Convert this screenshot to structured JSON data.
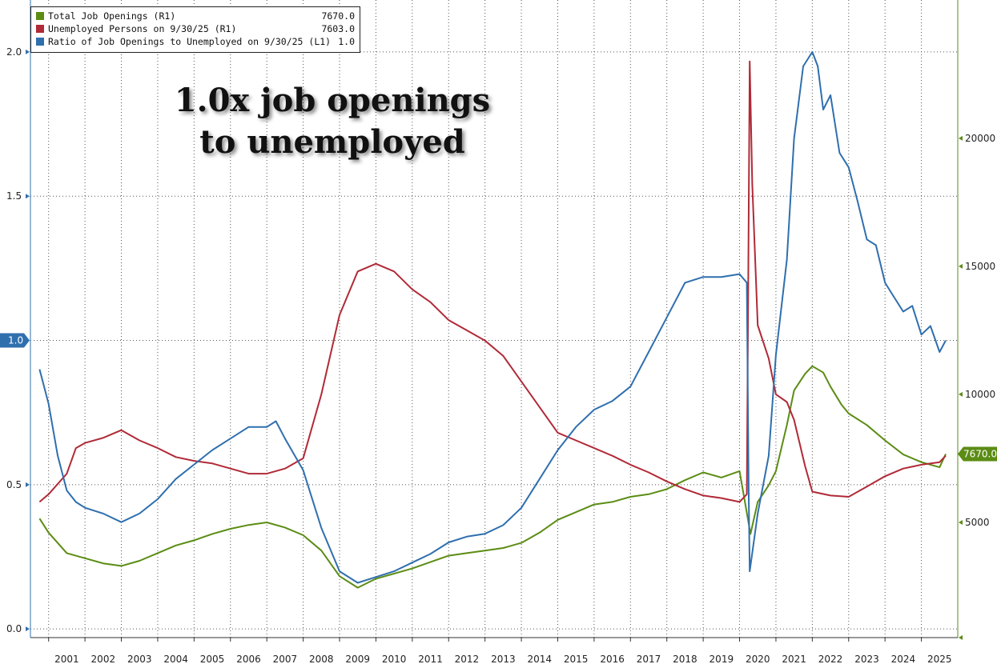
{
  "chart_data": {
    "type": "line",
    "annotation": "1.0x job openings to unemployed",
    "colors": {
      "total_job_openings": "#5b8c14",
      "unemployed_persons": "#b02a37",
      "ratio": "#2f6fae",
      "grid": "#555555",
      "right_axis": "#5b8c14",
      "left_axis": "#2f6fae"
    },
    "legend": [
      {
        "key": "total_job_openings",
        "label": "Total Job Openings (R1)",
        "value": "7670.0"
      },
      {
        "key": "unemployed_persons",
        "label": "Unemployed Persons on 9/30/25 (R1)",
        "value": "7603.0"
      },
      {
        "key": "ratio",
        "label": "Ratio of Job Openings to Unemployed on 9/30/25 (L1)",
        "value": "1.0"
      }
    ],
    "left_axis": {
      "ticks": [
        "0.0",
        "0.5",
        "1.0",
        "1.5",
        "2.0"
      ],
      "tick_values": [
        0,
        0.5,
        1.0,
        1.5,
        2.0
      ],
      "range": [
        -0.03,
        2.18
      ],
      "current_label": "1.0",
      "current_value": 1.0
    },
    "right_axis": {
      "ticks": [
        "5000",
        "10000",
        "15000",
        "20000"
      ],
      "tick_values": [
        5000,
        10000,
        15000,
        20000
      ],
      "range": [
        500,
        25400
      ],
      "current_label": "7670.0",
      "current_value": 7670
    },
    "x_axis": {
      "range": [
        2000.5,
        2026.0
      ],
      "labels": [
        "2001",
        "2002",
        "2003",
        "2004",
        "2005",
        "2006",
        "2007",
        "2008",
        "2009",
        "2010",
        "2011",
        "2012",
        "2013",
        "2014",
        "2015",
        "2016",
        "2017",
        "2018",
        "2019",
        "2020",
        "2021",
        "2022",
        "2023",
        "2024",
        "2025"
      ]
    },
    "grid": true,
    "legend_position": "top-left",
    "series": [
      {
        "key": "total_job_openings",
        "name": "Total Job Openings",
        "axis": "right",
        "x": [
          2000.75,
          2001.0,
          2001.5,
          2002.0,
          2002.5,
          2003.0,
          2003.5,
          2004.0,
          2004.5,
          2005.0,
          2005.5,
          2006.0,
          2006.5,
          2007.0,
          2007.5,
          2008.0,
          2008.5,
          2009.0,
          2009.5,
          2010.0,
          2010.5,
          2011.0,
          2011.5,
          2012.0,
          2012.5,
          2013.0,
          2013.5,
          2014.0,
          2014.5,
          2015.0,
          2015.5,
          2016.0,
          2016.5,
          2017.0,
          2017.5,
          2018.0,
          2018.5,
          2019.0,
          2019.5,
          2020.0,
          2020.3,
          2020.5,
          2020.8,
          2021.0,
          2021.3,
          2021.5,
          2021.8,
          2022.0,
          2022.3,
          2022.5,
          2022.8,
          2023.0,
          2023.5,
          2024.0,
          2024.5,
          2025.0,
          2025.5,
          2025.67
        ],
        "values": [
          5150,
          4600,
          3800,
          3600,
          3400,
          3300,
          3500,
          3800,
          4100,
          4300,
          4550,
          4750,
          4900,
          5000,
          4800,
          4500,
          3900,
          2900,
          2450,
          2800,
          3000,
          3200,
          3450,
          3700,
          3800,
          3900,
          4000,
          4200,
          4600,
          5100,
          5400,
          5700,
          5800,
          6000,
          6100,
          6300,
          6650,
          6950,
          6750,
          7000,
          4550,
          5800,
          6450,
          7000,
          8800,
          10150,
          10800,
          11100,
          10850,
          10300,
          9600,
          9250,
          8800,
          8200,
          7650,
          7350,
          7150,
          7670
        ]
      },
      {
        "key": "unemployed_persons",
        "name": "Unemployed Persons",
        "axis": "right",
        "x": [
          2000.75,
          2001.0,
          2001.5,
          2001.75,
          2002.0,
          2002.5,
          2003.0,
          2003.5,
          2004.0,
          2004.5,
          2005.0,
          2005.5,
          2006.0,
          2006.5,
          2007.0,
          2007.5,
          2008.0,
          2008.5,
          2009.0,
          2009.5,
          2010.0,
          2010.5,
          2011.0,
          2011.5,
          2012.0,
          2012.5,
          2013.0,
          2013.5,
          2014.0,
          2014.5,
          2015.0,
          2015.5,
          2016.0,
          2016.5,
          2017.0,
          2017.5,
          2018.0,
          2018.5,
          2019.0,
          2019.5,
          2020.0,
          2020.2,
          2020.28,
          2020.35,
          2020.5,
          2020.8,
          2021.0,
          2021.3,
          2021.5,
          2021.8,
          2022.0,
          2022.5,
          2023.0,
          2023.5,
          2024.0,
          2024.5,
          2025.0,
          2025.5,
          2025.67
        ],
        "values": [
          5800,
          6100,
          6900,
          7900,
          8100,
          8300,
          8600,
          8200,
          7900,
          7550,
          7400,
          7300,
          7100,
          6900,
          6900,
          7100,
          7500,
          10000,
          13100,
          14800,
          15100,
          14800,
          14100,
          13600,
          12900,
          12500,
          12100,
          11500,
          10500,
          9500,
          8500,
          8200,
          7900,
          7600,
          7250,
          6950,
          6600,
          6300,
          6050,
          5950,
          5800,
          6100,
          23000,
          18200,
          12700,
          11400,
          10000,
          9700,
          9000,
          7200,
          6200,
          6050,
          6000,
          6400,
          6800,
          7100,
          7250,
          7350,
          7603
        ]
      },
      {
        "key": "ratio",
        "name": "Ratio of Job Openings to Unemployed",
        "axis": "left",
        "x": [
          2000.75,
          2001.0,
          2001.25,
          2001.5,
          2001.75,
          2002.0,
          2002.5,
          2003.0,
          2003.5,
          2004.0,
          2004.5,
          2005.0,
          2005.5,
          2006.0,
          2006.5,
          2007.0,
          2007.25,
          2007.5,
          2008.0,
          2008.5,
          2009.0,
          2009.5,
          2010.0,
          2010.5,
          2011.0,
          2011.5,
          2012.0,
          2012.5,
          2013.0,
          2013.5,
          2014.0,
          2014.5,
          2015.0,
          2015.5,
          2016.0,
          2016.5,
          2017.0,
          2017.5,
          2018.0,
          2018.5,
          2019.0,
          2019.5,
          2020.0,
          2020.2,
          2020.25,
          2020.28,
          2020.5,
          2020.8,
          2021.0,
          2021.3,
          2021.5,
          2021.75,
          2022.0,
          2022.15,
          2022.3,
          2022.5,
          2022.75,
          2023.0,
          2023.25,
          2023.5,
          2023.75,
          2024.0,
          2024.25,
          2024.5,
          2024.75,
          2025.0,
          2025.25,
          2025.5,
          2025.67
        ],
        "values": [
          0.9,
          0.78,
          0.6,
          0.48,
          0.44,
          0.42,
          0.4,
          0.37,
          0.4,
          0.45,
          0.52,
          0.57,
          0.62,
          0.66,
          0.7,
          0.7,
          0.72,
          0.66,
          0.55,
          0.35,
          0.2,
          0.16,
          0.18,
          0.2,
          0.23,
          0.26,
          0.3,
          0.32,
          0.33,
          0.36,
          0.42,
          0.52,
          0.62,
          0.7,
          0.76,
          0.79,
          0.84,
          0.96,
          1.08,
          1.2,
          1.22,
          1.22,
          1.23,
          1.2,
          0.48,
          0.2,
          0.4,
          0.6,
          0.95,
          1.28,
          1.7,
          1.95,
          2.0,
          1.95,
          1.8,
          1.85,
          1.65,
          1.6,
          1.48,
          1.35,
          1.33,
          1.2,
          1.15,
          1.1,
          1.12,
          1.02,
          1.05,
          0.96,
          1.0
        ]
      }
    ]
  }
}
